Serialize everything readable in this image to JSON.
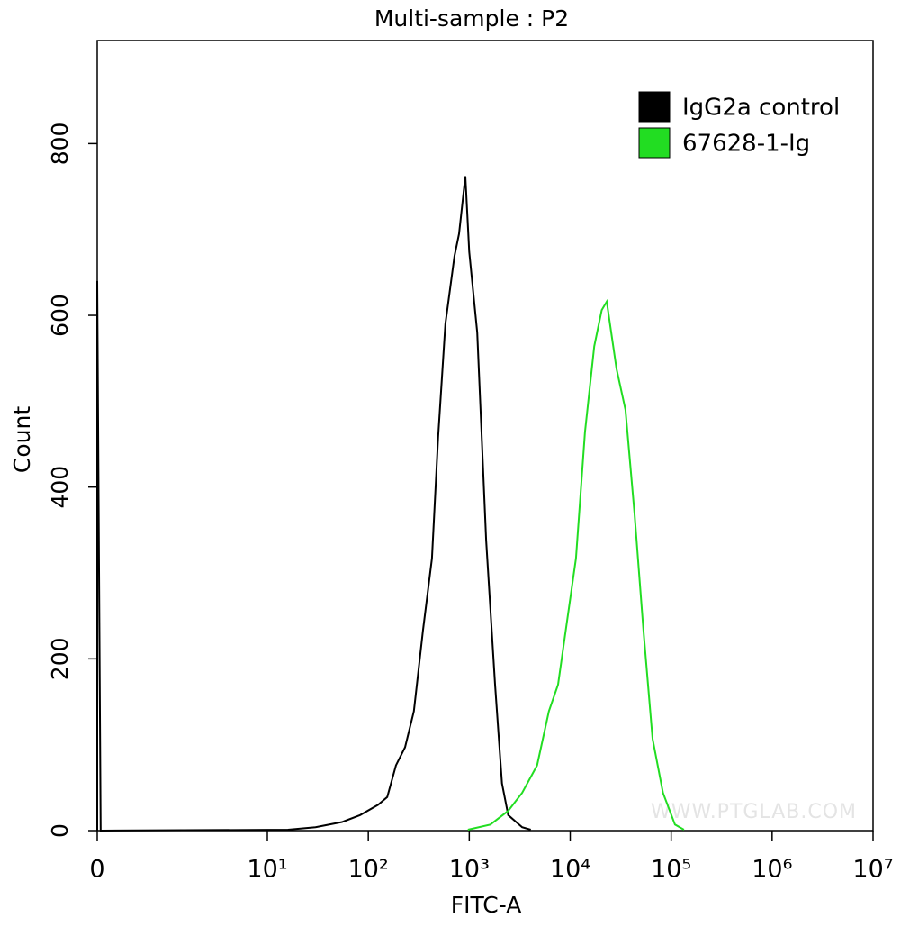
{
  "chart_data": {
    "type": "line",
    "title": "Multi-sample : P2",
    "x_label": "FITC-A",
    "y_label": "Count",
    "xscale": "biexponential",
    "xlim": [
      0,
      10000000
    ],
    "xticks": [
      0,
      {
        "value": 10,
        "label": "10¹"
      },
      {
        "value": 100,
        "label": "10²"
      },
      {
        "value": 1000,
        "label": "10³"
      },
      {
        "value": 10000,
        "label": "10⁴"
      },
      {
        "value": 100000,
        "label": "10⁵"
      },
      {
        "value": 1000000,
        "label": "10⁶"
      },
      {
        "value": 10000000,
        "label": "10⁷"
      }
    ],
    "ylim": [
      0,
      920
    ],
    "yticks": [
      0,
      200,
      400,
      600,
      800
    ],
    "legend": "top-right",
    "annotation": "WWW.PTGLAB.COM",
    "series": [
      {
        "name": "IgG2a control",
        "color": "#000000",
        "x": [
          0,
          0,
          0.2,
          16,
          30,
          55,
          83,
          125,
          154,
          188,
          231,
          283,
          348,
          427,
          492,
          580,
          713,
          792,
          914,
          1000,
          1200,
          1470,
          1800,
          2110,
          2430,
          3340,
          4070
        ],
        "values": [
          0,
          640,
          0,
          1,
          4,
          10,
          18,
          30,
          39,
          76,
          97,
          139,
          233,
          317,
          459,
          590,
          669,
          695,
          762,
          674,
          580,
          338,
          170,
          55,
          18,
          4,
          1
        ]
      },
      {
        "name": "67628-1-Ig",
        "color": "#22dd22",
        "x": [
          970,
          1620,
          2430,
          3340,
          4700,
          6150,
          7580,
          9300,
          11400,
          14000,
          17300,
          20500,
          23000,
          28700,
          35300,
          43300,
          53200,
          65400,
          83000,
          109000,
          134000
        ],
        "values": [
          1,
          7,
          23,
          44,
          76,
          139,
          170,
          244,
          317,
          464,
          564,
          606,
          616,
          538,
          490,
          370,
          233,
          107,
          44,
          7,
          1
        ]
      }
    ]
  }
}
